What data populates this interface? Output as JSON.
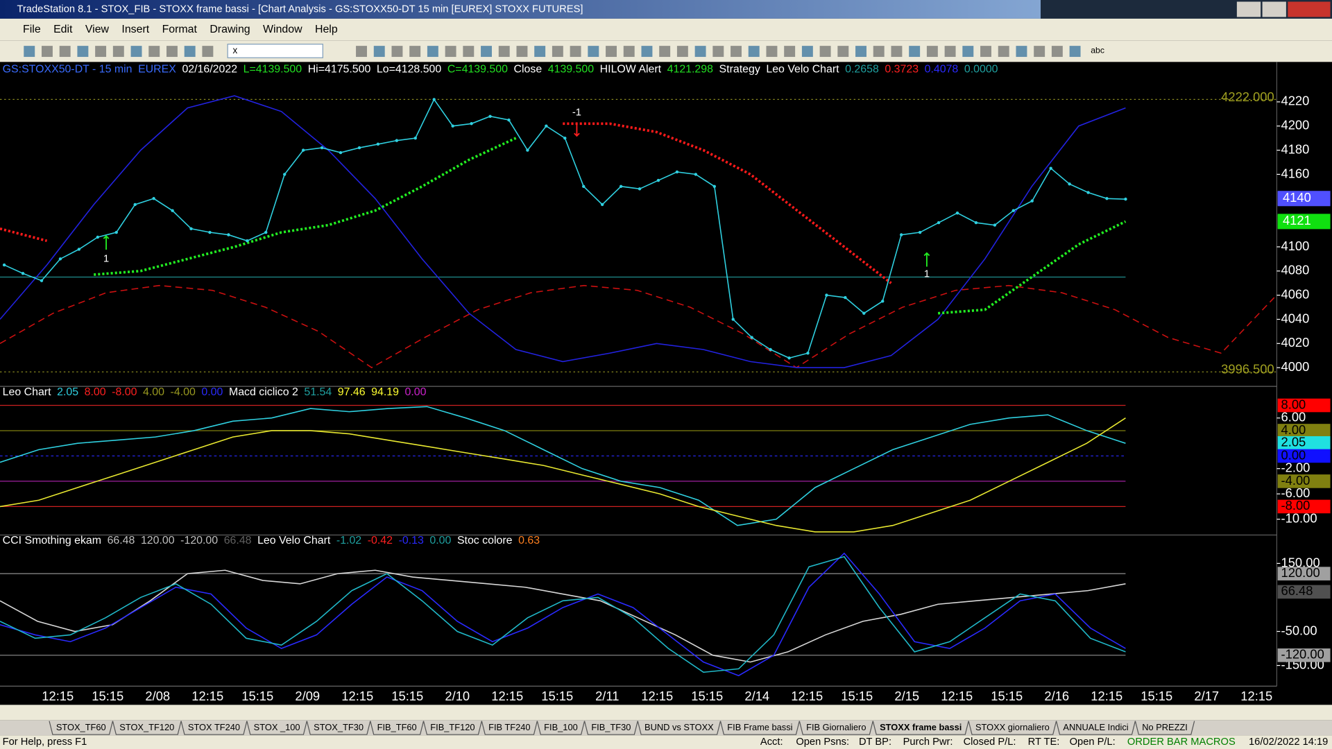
{
  "window": {
    "title": "TradeStation 8.1 - STOX_FIB - STOXX frame bassi - [Chart Analysis - GS:STOXX50-DT  15 min  [EUREX] STOXX FUTURES]"
  },
  "menu": [
    "File",
    "Edit",
    "View",
    "Insert",
    "Format",
    "Drawing",
    "Window",
    "Help"
  ],
  "toolbar": {
    "symbol_box": "x",
    "text_tool": "abc"
  },
  "chart_data": [
    {
      "type": "line",
      "header": [
        {
          "text": "GS:STOXX50-DT - 15 min",
          "color": "#3a6cff"
        },
        {
          "text": "EUREX",
          "color": "#3a6cff"
        },
        {
          "text": "02/16/2022",
          "color": "#ffffff"
        },
        {
          "text": "L=4139.500",
          "color": "#22e022"
        },
        {
          "text": "Hi=4175.500",
          "color": "#ffffff"
        },
        {
          "text": "Lo=4128.500",
          "color": "#ffffff"
        },
        {
          "text": "C=4139.500",
          "color": "#22e022"
        },
        {
          "text": "Close",
          "color": "#ffffff"
        },
        {
          "text": "4139.500",
          "color": "#22e022"
        },
        {
          "text": "HILOW Alert",
          "color": "#ffffff"
        },
        {
          "text": "4121.298",
          "color": "#22e022"
        },
        {
          "text": "Strategy",
          "color": "#ffffff"
        },
        {
          "text": "Leo Velo Chart",
          "color": "#ffffff"
        },
        {
          "text": "0.2658",
          "color": "#1fa0a0"
        },
        {
          "text": "0.3723",
          "color": "#ff2020"
        },
        {
          "text": "0.4078",
          "color": "#2a2aff"
        },
        {
          "text": "0.0000",
          "color": "#1fa0a0"
        }
      ],
      "x_labels": [
        "12:15",
        "15:15",
        "2/08",
        "12:15",
        "15:15",
        "2/09",
        "12:15",
        "15:15",
        "2/10",
        "12:15",
        "15:15",
        "2/11",
        "12:15",
        "15:15",
        "2/14",
        "12:15",
        "15:15",
        "2/15",
        "12:15",
        "15:15",
        "2/16",
        "12:15",
        "15:15",
        "2/17",
        "12:15"
      ],
      "ylim": [
        3984.5,
        4251.6
      ],
      "yticks": [
        4000,
        4020,
        4040,
        4060,
        4080,
        4100,
        4160,
        4180,
        4200,
        4220
      ],
      "close": {
        "color": "#2fd0e0",
        "values": [
          4085,
          4078,
          4072,
          4090,
          4098,
          4108,
          4112,
          4135,
          4140,
          4130,
          4115,
          4112,
          4110,
          4105,
          4112,
          4160,
          4180,
          4182,
          4178,
          4182,
          4185,
          4188,
          4190,
          4222,
          4200,
          4202,
          4208,
          4205,
          4180,
          4200,
          4190,
          4150,
          4135,
          4150,
          4148,
          4155,
          4162,
          4160,
          4150,
          4040,
          4025,
          4015,
          4008,
          4012,
          4060,
          4058,
          4045,
          4055,
          4110,
          4112,
          4120,
          4128,
          4120,
          4118,
          4130,
          4138,
          4165,
          4152,
          4145,
          4140,
          4139.5
        ]
      },
      "hilow_down": {
        "color": "#ff1a1a",
        "values": [
          4115,
          4105,
          null,
          null,
          null,
          null,
          null,
          null,
          null,
          null,
          null,
          null,
          4202,
          4202,
          4195,
          4180,
          4160,
          4130,
          4100,
          4070,
          null,
          null,
          null,
          null,
          null
        ]
      },
      "hilow_up": {
        "color": "#22ee22",
        "values": [
          null,
          null,
          4077,
          4080,
          4090,
          4100,
          4112,
          4118,
          4130,
          4150,
          4172,
          4190,
          null,
          null,
          null,
          null,
          null,
          null,
          null,
          null,
          4045,
          4048,
          4075,
          4102,
          4121
        ]
      },
      "average": {
        "color": "#2222e0",
        "values": [
          4040,
          4085,
          4135,
          4180,
          4215,
          4225,
          4212,
          4180,
          4140,
          4090,
          4045,
          4015,
          4005,
          4012,
          4020,
          4015,
          4005,
          4000,
          4000,
          4010,
          4040,
          4090,
          4150,
          4200,
          4215
        ]
      },
      "cycle": {
        "color": "#cc1010",
        "values": [
          4020,
          4045,
          4062,
          4068,
          4064,
          4050,
          4030,
          4000,
          4025,
          4048,
          4062,
          4068,
          4064,
          4050,
          4028,
          4000,
          4028,
          4050,
          4064,
          4068,
          4062,
          4048,
          4025,
          4012,
          4058
        ]
      },
      "reference_line": {
        "value": 4075,
        "color": "#1f8f8f"
      },
      "levels": [
        {
          "value": 4222,
          "label": "4222.000"
        },
        {
          "value": 3996.5,
          "label": "3996.500"
        }
      ],
      "boxes": [
        {
          "value": 4140,
          "color": "#5050ff"
        },
        {
          "value": 4121,
          "color": "#10e010"
        }
      ],
      "annotations": [
        {
          "label": "1",
          "color": "#22ee22"
        },
        {
          "label": "-1",
          "color": "#ff2020"
        },
        {
          "label": "1",
          "color": "#22ee22"
        }
      ]
    },
    {
      "type": "line",
      "header": [
        {
          "text": "Leo Chart",
          "color": "#ffffff"
        },
        {
          "text": "2.05",
          "color": "#2fd0e0"
        },
        {
          "text": "8.00",
          "color": "#ff2020"
        },
        {
          "text": "-8.00",
          "color": "#ff2020"
        },
        {
          "text": "4.00",
          "color": "#9a9a20"
        },
        {
          "text": "-4.00",
          "color": "#9a9a20"
        },
        {
          "text": "0.00",
          "color": "#2a2aff"
        },
        {
          "text": "Macd ciclico 2",
          "color": "#ffffff"
        },
        {
          "text": "51.54",
          "color": "#1fa0a0"
        },
        {
          "text": "97.46",
          "color": "#ffff30"
        },
        {
          "text": "94.19",
          "color": "#ffff30"
        },
        {
          "text": "0.00",
          "color": "#cc22cc"
        }
      ],
      "ylim": [
        -12.5,
        11
      ],
      "yticks": [
        {
          "value": 6,
          "label": "6.00"
        },
        {
          "value": -2,
          "label": "-2.00"
        },
        {
          "value": -6,
          "label": "-6.00"
        },
        {
          "value": -10,
          "label": "-10.00"
        }
      ],
      "boxes": [
        {
          "value": 8,
          "label": "8.00",
          "color": "#ff0000",
          "line": "#cc2020"
        },
        {
          "value": 4,
          "label": "4.00",
          "color": "#808010",
          "line": "#808010"
        },
        {
          "value": 2.05,
          "label": "2.05",
          "color": "#20e0e0"
        },
        {
          "value": 0,
          "label": "0.00",
          "color": "#1010ff",
          "line": "#2a2aff"
        },
        {
          "value": -4,
          "label": "-4.00",
          "color": "#808010",
          "line": "#a020a0"
        },
        {
          "value": -8,
          "label": "-8.00",
          "color": "#ff0000",
          "line": "#cc2020"
        }
      ],
      "series": [
        {
          "color": "#2fd0e0",
          "values": [
            -1,
            1,
            2,
            2.5,
            3,
            4,
            5.5,
            6,
            7.5,
            7,
            7.5,
            7.8,
            6,
            4,
            1,
            -2,
            -4,
            -5,
            -7,
            -11,
            -10,
            -5,
            -2,
            1,
            3,
            5,
            6,
            6.5,
            4,
            2
          ]
        },
        {
          "color": "#e8e830",
          "values": [
            -8,
            -7,
            -5,
            -3,
            -1,
            1,
            3,
            4,
            4,
            3.5,
            2.5,
            1.5,
            0.5,
            -0.5,
            -1.5,
            -3,
            -4.5,
            -6,
            -8,
            -9.5,
            -11,
            -12,
            -12,
            -11,
            -9,
            -7,
            -4,
            -1,
            2,
            6
          ]
        }
      ]
    },
    {
      "type": "line",
      "header": [
        {
          "text": "CCI Smothing ekam",
          "color": "#ffffff"
        },
        {
          "text": "66.48",
          "color": "#c0c0c0"
        },
        {
          "text": "120.00",
          "color": "#c0c0c0"
        },
        {
          "text": "-120.00",
          "color": "#c0c0c0"
        },
        {
          "text": "66.48",
          "color": "#606060"
        },
        {
          "text": "Leo Velo Chart",
          "color": "#ffffff"
        },
        {
          "text": "-1.02",
          "color": "#1fa0a0"
        },
        {
          "text": "-0.42",
          "color": "#ff2020"
        },
        {
          "text": "-0.13",
          "color": "#2a2aff"
        },
        {
          "text": "0.00",
          "color": "#1fa0a0"
        },
        {
          "text": "Stoc colore",
          "color": "#ffffff"
        },
        {
          "text": "0.63",
          "color": "#ff8020"
        }
      ],
      "ylim": [
        -210.9,
        233.6
      ],
      "yticks": [
        {
          "value": 150,
          "label": "150.00"
        },
        {
          "value": -50,
          "label": "-50.00"
        },
        {
          "value": -150,
          "label": "-150.00"
        }
      ],
      "boxes": [
        {
          "value": 120,
          "label": "120.00",
          "color": "#a0a0a0",
          "line": "#909090"
        },
        {
          "value": 66.48,
          "label": "66.48",
          "color": "#505050"
        },
        {
          "value": -120,
          "label": "-120.00",
          "color": "#a0a0a0",
          "line": "#909090"
        }
      ],
      "series": [
        {
          "color": "#d8d8d8",
          "values": [
            40,
            -20,
            -50,
            -30,
            40,
            120,
            130,
            100,
            90,
            120,
            130,
            110,
            100,
            90,
            80,
            60,
            40,
            -10,
            -60,
            -120,
            -140,
            -110,
            -60,
            -20,
            0,
            30,
            40,
            50,
            60,
            70,
            90
          ]
        },
        {
          "color": "#2a2aff",
          "values": [
            -30,
            -60,
            -80,
            -40,
            20,
            80,
            60,
            -40,
            -100,
            -60,
            30,
            110,
            70,
            -20,
            -80,
            -40,
            20,
            60,
            20,
            -60,
            -140,
            -180,
            -120,
            80,
            180,
            60,
            -80,
            -100,
            -40,
            40,
            60,
            -40,
            -100
          ]
        },
        {
          "color": "#20b8c8",
          "values": [
            -20,
            -70,
            -60,
            -10,
            50,
            90,
            30,
            -70,
            -90,
            -20,
            70,
            120,
            40,
            -50,
            -90,
            -10,
            40,
            50,
            -10,
            -100,
            -170,
            -160,
            -60,
            140,
            170,
            20,
            -110,
            -80,
            -10,
            60,
            40,
            -70,
            -110
          ]
        }
      ]
    }
  ],
  "tabs": [
    "STOX_TF60",
    "STOX_TF120",
    "STOX TF240",
    "STOX _100",
    "STOX_TF30",
    "FIB_TF60",
    "FIB_TF120",
    "FIB TF240",
    "FIB_100",
    "FIB_TF30",
    "BUND vs STOXX",
    "FIB Frame bassi",
    "FIB Giornaliero",
    "STOXX frame bassi",
    "STOXX giornaliero",
    "ANNUALE Indici",
    "No PREZZI"
  ],
  "active_tab": 13,
  "status_bar": [
    "For Help, press F1",
    "Acct:",
    "Open Psns:",
    "DT BP:",
    "Purch Pwr:",
    "Closed P/L:",
    "RT TE:",
    "Open P/L:",
    "ORDER BAR MACROS",
    "16/02/2022 14:19"
  ]
}
